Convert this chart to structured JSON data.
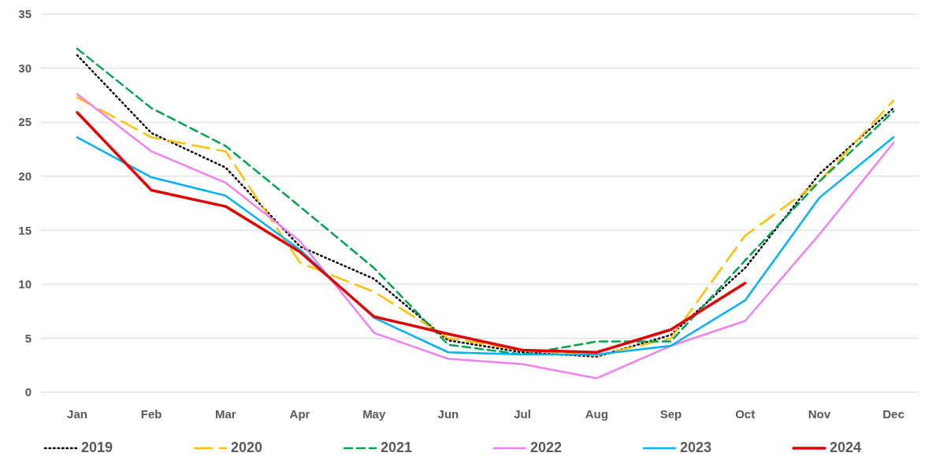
{
  "chart_data": {
    "type": "line",
    "categories": [
      "Jan",
      "Feb",
      "Mar",
      "Apr",
      "May",
      "Jun",
      "Jul",
      "Aug",
      "Sep",
      "Oct",
      "Nov",
      "Dec"
    ],
    "ylim": [
      0,
      35
    ],
    "yticks": [
      0,
      5,
      10,
      15,
      20,
      25,
      30,
      35
    ],
    "grid": "y",
    "legend": "bottom",
    "marker": "none",
    "series": [
      {
        "name": "2019",
        "color": "#000000",
        "line_style": "dotted",
        "values": [
          31.2,
          24,
          20.8,
          13.5,
          10.5,
          4.8,
          3.7,
          3.3,
          5.3,
          11.5,
          20.2,
          26.3
        ]
      },
      {
        "name": "2020",
        "color": "#ffc000",
        "line_style": "dashed",
        "values": [
          27.3,
          23.6,
          22.3,
          12,
          9.3,
          5,
          3.9,
          3.4,
          5,
          14.5,
          19.5,
          27
        ]
      },
      {
        "name": "2021",
        "color": "#00a050",
        "line_style": "dashed",
        "values": [
          31.8,
          26.3,
          22.8,
          17.2,
          11.5,
          4.4,
          3.5,
          4.7,
          4.7,
          12.2,
          19.5,
          26
        ]
      },
      {
        "name": "2022",
        "color": "#ee82ee",
        "line_style": "solid",
        "values": [
          27.6,
          22.3,
          19.4,
          14,
          5.5,
          3.1,
          2.6,
          1.3,
          4.3,
          6.6,
          14.6,
          23.1
        ]
      },
      {
        "name": "2023",
        "color": "#00b0f0",
        "line_style": "solid",
        "values": [
          23.6,
          19.9,
          18.2,
          13.2,
          6.9,
          3.7,
          3.5,
          3.5,
          4.3,
          8.5,
          18,
          23.6
        ]
      },
      {
        "name": "2024",
        "color": "#e00000",
        "line_style": "solid",
        "values": [
          25.9,
          18.7,
          17.2,
          13,
          7,
          5.4,
          3.9,
          3.7,
          5.8,
          10.1,
          null,
          null
        ]
      }
    ]
  }
}
